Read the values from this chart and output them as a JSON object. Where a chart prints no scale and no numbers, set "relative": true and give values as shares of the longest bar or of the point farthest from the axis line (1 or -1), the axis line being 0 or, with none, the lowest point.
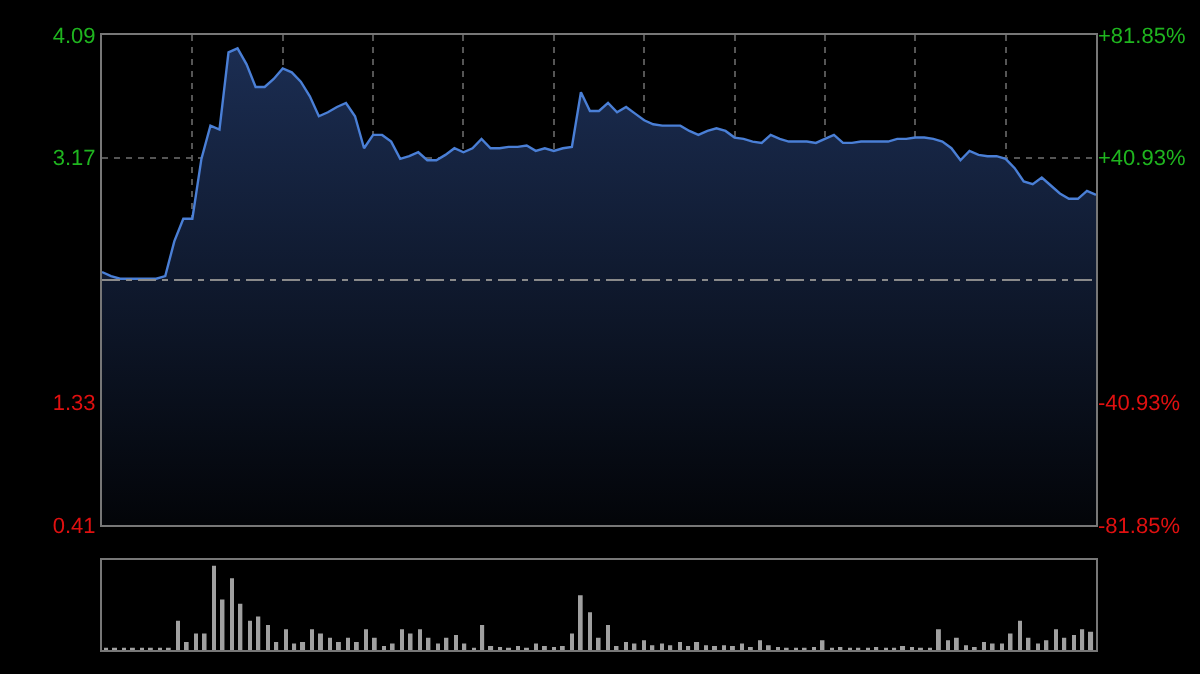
{
  "chart_data": [
    {
      "type": "area",
      "categories": [
        null,
        null,
        null,
        null,
        null,
        null,
        null,
        null,
        null,
        null,
        null,
        null,
        null,
        null,
        null,
        null,
        null,
        null,
        null,
        null,
        null,
        null,
        null,
        null,
        null,
        null,
        null,
        null,
        null,
        null,
        null,
        null,
        null,
        null,
        null,
        null,
        null,
        null,
        null,
        null,
        null,
        null,
        null,
        null,
        null,
        null,
        null,
        null,
        null,
        null,
        null,
        null,
        null,
        null,
        null,
        null,
        null,
        null,
        null,
        null,
        null,
        null,
        null,
        null,
        null,
        null,
        null,
        null,
        null,
        null,
        null,
        null,
        null,
        null,
        null,
        null,
        null,
        null,
        null,
        null,
        null,
        null,
        null,
        null,
        null,
        null,
        null,
        null,
        null,
        null,
        null,
        null,
        null,
        null,
        null,
        null,
        null,
        null,
        null,
        null,
        null,
        null,
        null,
        null,
        null,
        null,
        null,
        null,
        null,
        null,
        null
      ],
      "values": [
        2.31,
        2.28,
        2.26,
        2.26,
        2.26,
        2.26,
        2.26,
        2.28,
        2.54,
        2.71,
        2.71,
        3.16,
        3.41,
        3.38,
        3.96,
        3.99,
        3.87,
        3.7,
        3.7,
        3.76,
        3.84,
        3.81,
        3.74,
        3.63,
        3.48,
        3.51,
        3.55,
        3.58,
        3.48,
        3.24,
        3.34,
        3.34,
        3.29,
        3.16,
        3.18,
        3.21,
        3.15,
        3.15,
        3.19,
        3.24,
        3.21,
        3.24,
        3.31,
        3.24,
        3.24,
        3.25,
        3.25,
        3.26,
        3.22,
        3.24,
        3.22,
        3.24,
        3.25,
        3.66,
        3.52,
        3.52,
        3.58,
        3.51,
        3.55,
        3.5,
        3.45,
        3.42,
        3.41,
        3.41,
        3.41,
        3.37,
        3.34,
        3.37,
        3.39,
        3.37,
        3.32,
        3.31,
        3.29,
        3.28,
        3.34,
        3.31,
        3.29,
        3.29,
        3.29,
        3.28,
        3.31,
        3.34,
        3.28,
        3.28,
        3.29,
        3.29,
        3.29,
        3.29,
        3.31,
        3.31,
        3.32,
        3.32,
        3.31,
        3.29,
        3.24,
        3.15,
        3.22,
        3.19,
        3.18,
        3.18,
        3.16,
        3.09,
        2.99,
        2.97,
        3.02,
        2.96,
        2.9,
        2.86,
        2.86,
        2.92,
        2.89
      ],
      "color": "#4a7fd6",
      "ylim": [
        0.41,
        4.09
      ],
      "yticks": [
        0.41,
        1.33,
        3.17,
        4.09
      ],
      "y2lim": [
        -81.85,
        81.85
      ],
      "y2ticks": [
        {
          "value": -81.85,
          "label": "-81.85%"
        },
        {
          "value": -40.93,
          "label": "-40.93%"
        },
        {
          "value": 40.93,
          "label": "+40.93%"
        },
        {
          "value": 81.85,
          "label": "+81.85%"
        }
      ],
      "ref_lines": [
        {
          "axis": "y",
          "value": 2.25,
          "line_style": "dashed",
          "color": "#8a8a8a"
        }
      ],
      "grid": true,
      "marker": "none",
      "line_style": "solid"
    },
    {
      "type": "bar",
      "relative": true,
      "categories": [
        null,
        null,
        null,
        null,
        null,
        null,
        null,
        null,
        null,
        null,
        null,
        null,
        null,
        null,
        null,
        null,
        null,
        null,
        null,
        null,
        null,
        null,
        null,
        null,
        null,
        null,
        null,
        null,
        null,
        null,
        null,
        null,
        null,
        null,
        null,
        null,
        null,
        null,
        null,
        null,
        null,
        null,
        null,
        null,
        null,
        null,
        null,
        null,
        null,
        null,
        null,
        null,
        null,
        null,
        null,
        null,
        null,
        null,
        null,
        null,
        null,
        null,
        null,
        null,
        null,
        null,
        null,
        null,
        null,
        null,
        null,
        null,
        null,
        null,
        null,
        null,
        null,
        null,
        null,
        null,
        null,
        null,
        null,
        null,
        null,
        null,
        null,
        null,
        null,
        null,
        null,
        null,
        null,
        null,
        null,
        null,
        null,
        null,
        null,
        null,
        null,
        null,
        null,
        null,
        null,
        null,
        null,
        null,
        null,
        null,
        null
      ],
      "values": [
        0.02,
        0.02,
        0.02,
        0.02,
        0.02,
        0.02,
        0.02,
        0.02,
        0.35,
        0.1,
        0.2,
        0.2,
        1.0,
        0.6,
        0.85,
        0.55,
        0.35,
        0.4,
        0.3,
        0.1,
        0.25,
        0.08,
        0.1,
        0.25,
        0.2,
        0.15,
        0.1,
        0.15,
        0.1,
        0.25,
        0.15,
        0.05,
        0.08,
        0.25,
        0.2,
        0.25,
        0.15,
        0.08,
        0.15,
        0.18,
        0.08,
        0.03,
        0.3,
        0.05,
        0.04,
        0.03,
        0.05,
        0.03,
        0.08,
        0.05,
        0.04,
        0.05,
        0.2,
        0.65,
        0.45,
        0.15,
        0.3,
        0.05,
        0.1,
        0.08,
        0.12,
        0.06,
        0.08,
        0.06,
        0.1,
        0.05,
        0.1,
        0.06,
        0.05,
        0.06,
        0.05,
        0.08,
        0.04,
        0.12,
        0.06,
        0.04,
        0.03,
        0.03,
        0.03,
        0.04,
        0.12,
        0.03,
        0.04,
        0.03,
        0.03,
        0.03,
        0.04,
        0.03,
        0.03,
        0.05,
        0.04,
        0.03,
        0.03,
        0.25,
        0.12,
        0.15,
        0.06,
        0.04,
        0.1,
        0.08,
        0.08,
        0.2,
        0.35,
        0.15,
        0.08,
        0.12,
        0.25,
        0.15,
        0.18,
        0.25,
        0.22
      ],
      "color": "#a0a0a0"
    }
  ]
}
